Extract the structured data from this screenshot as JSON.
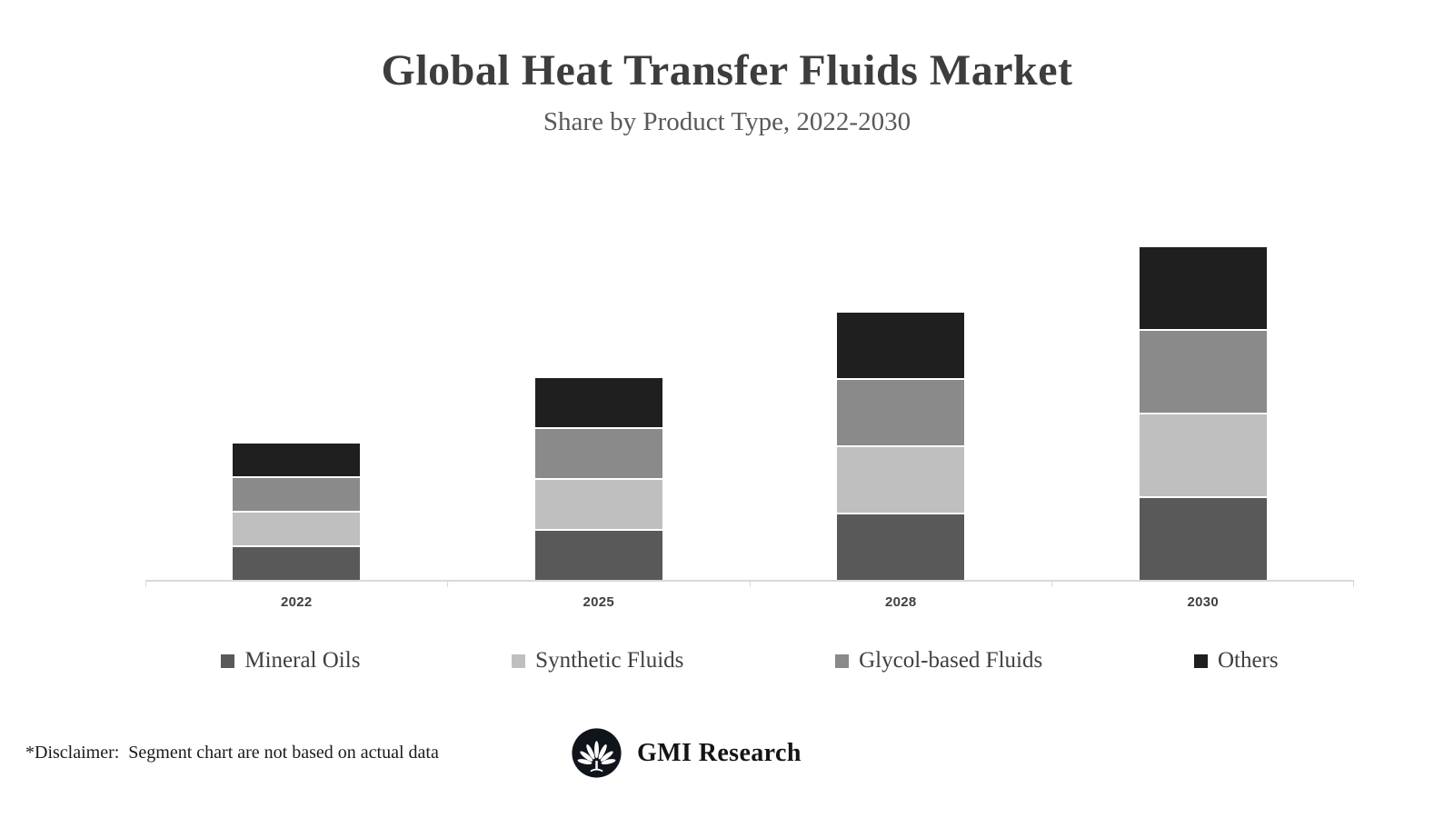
{
  "header": {
    "title": "Global Heat Transfer Fluids Market",
    "subtitle": "Share by Product Type, 2022-2030"
  },
  "chart_data": {
    "type": "bar",
    "stacked": true,
    "title": "Global Heat Transfer Fluids Market",
    "subtitle": "Share by Product Type, 2022-2030",
    "categories": [
      "2022",
      "2025",
      "2028",
      "2030"
    ],
    "series": [
      {
        "name": "Mineral Oils",
        "color": "#595959",
        "values": [
          10,
          15,
          20,
          25
        ]
      },
      {
        "name": "Synthetic Fluids",
        "color": "#bfbfbf",
        "values": [
          10,
          15,
          20,
          25
        ]
      },
      {
        "name": "Glycol-based Fluids",
        "color": "#8a8a8a",
        "values": [
          10,
          15,
          20,
          25
        ]
      },
      {
        "name": "Others",
        "color": "#1f1f1f",
        "values": [
          10,
          15,
          20,
          25
        ]
      }
    ],
    "xlabel": "",
    "ylabel": "",
    "ylim": [
      0,
      102
    ],
    "grid": false,
    "legend_position": "bottom"
  },
  "footer": {
    "disclaimer": "*Disclaimer:  Segment chart are not based on actual data",
    "brand": "GMI Research"
  }
}
